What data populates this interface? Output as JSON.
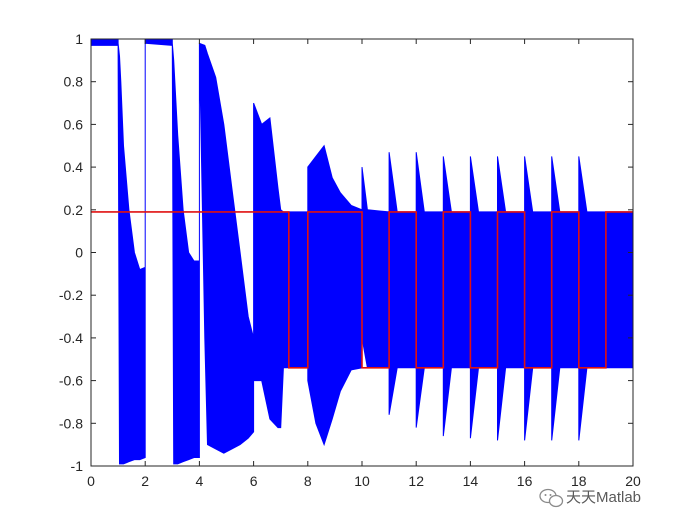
{
  "chart_data": {
    "type": "line",
    "title": "",
    "xlabel": "",
    "ylabel": "",
    "xlim": [
      0,
      20
    ],
    "ylim": [
      -1,
      1
    ],
    "x_ticks": [
      0,
      2,
      4,
      6,
      8,
      10,
      12,
      14,
      16,
      18,
      20
    ],
    "y_ticks": [
      -1,
      -0.8,
      -0.6,
      -0.4,
      -0.2,
      0,
      0.2,
      0.4,
      0.6,
      0.8,
      1
    ],
    "x_tick_labels": [
      "0",
      "2",
      "4",
      "6",
      "8",
      "10",
      "12",
      "14",
      "16",
      "18",
      "20"
    ],
    "y_tick_labels": [
      "-1",
      "-0.8",
      "-0.6",
      "-0.4",
      "-0.2",
      "0",
      "0.2",
      "0.4",
      "0.6",
      "0.8",
      "1"
    ],
    "grid": false,
    "legend": "none",
    "series": [
      {
        "color": "#e01010",
        "x": [
          0,
          7.3,
          7.3,
          8.0,
          8.0,
          10,
          10,
          11,
          11,
          12,
          12,
          13,
          13,
          14,
          14,
          15,
          15,
          16,
          16,
          17,
          17,
          18,
          18,
          19,
          19,
          20
        ],
        "y": [
          0.19,
          0.19,
          -0.54,
          -0.54,
          0.19,
          0.19,
          -0.54,
          -0.54,
          0.19,
          0.19,
          -0.54,
          -0.54,
          0.19,
          0.19,
          -0.54,
          -0.54,
          0.19,
          0.19,
          -0.54,
          -0.54,
          0.19,
          0.19,
          -0.54,
          -0.54,
          0.19,
          0.19
        ]
      },
      {
        "color": "#0000ff",
        "envelope_x": [
          0,
          1.0,
          1.0,
          1.05,
          1.1,
          1.2,
          1.4,
          1.6,
          1.8,
          2.0,
          2.0,
          3.0,
          3.0,
          3.05,
          3.2,
          3.4,
          3.6,
          3.8,
          4.0,
          4.0,
          4.2,
          4.3,
          4.6,
          4.9,
          5.2,
          5.5,
          5.8,
          6.0,
          6.0,
          6.3,
          6.6,
          6.9,
          7.0,
          7.1,
          7.4,
          7.5,
          8.0,
          8.0,
          8.3,
          8.6,
          8.9,
          9.2,
          9.6,
          10.0,
          10.0,
          10.2,
          11.0,
          11.0,
          11.3,
          12.0,
          12.0,
          12.3,
          13.0,
          13.0,
          13.3,
          14.0,
          14.0,
          14.3,
          15.0,
          15.0,
          15.3,
          16.0,
          16.0,
          16.3,
          17.0,
          17.0,
          17.3,
          18.0,
          18.0,
          18.3,
          19.0,
          19.0,
          20.0
        ],
        "envelope_upper": [
          1.0,
          1.0,
          0.98,
          0.92,
          0.8,
          0.5,
          0.2,
          0.0,
          -0.08,
          -0.07,
          1.0,
          1.0,
          0.98,
          0.9,
          0.55,
          0.2,
          0.0,
          -0.04,
          -0.04,
          0.98,
          0.97,
          0.93,
          0.82,
          0.6,
          0.3,
          0.0,
          -0.3,
          -0.4,
          0.7,
          0.6,
          0.63,
          0.3,
          0.2,
          0.19,
          0.19,
          0.19,
          0.19,
          0.4,
          0.45,
          0.5,
          0.35,
          0.28,
          0.22,
          0.2,
          0.4,
          0.2,
          0.19,
          0.47,
          0.19,
          0.19,
          0.47,
          0.19,
          0.19,
          0.45,
          0.19,
          0.19,
          0.45,
          0.19,
          0.19,
          0.45,
          0.19,
          0.19,
          0.45,
          0.19,
          0.19,
          0.45,
          0.19,
          0.19,
          0.45,
          0.19,
          0.19,
          0.19,
          0.19
        ],
        "envelope_lower": [
          0.97,
          0.97,
          0.95,
          -0.99,
          -0.99,
          -0.99,
          -0.98,
          -0.97,
          -0.97,
          -0.96,
          0.98,
          0.97,
          0.95,
          -0.99,
          -0.99,
          -0.98,
          -0.97,
          -0.96,
          -0.96,
          0.97,
          -0.4,
          -0.9,
          -0.92,
          -0.94,
          -0.92,
          -0.9,
          -0.87,
          -0.84,
          -0.6,
          -0.6,
          -0.78,
          -0.82,
          -0.82,
          -0.54,
          -0.54,
          -0.54,
          -0.54,
          -0.6,
          -0.8,
          -0.9,
          -0.78,
          -0.65,
          -0.55,
          -0.54,
          -0.4,
          -0.54,
          -0.54,
          -0.76,
          -0.54,
          -0.54,
          -0.82,
          -0.54,
          -0.54,
          -0.86,
          -0.54,
          -0.54,
          -0.87,
          -0.54,
          -0.54,
          -0.88,
          -0.54,
          -0.54,
          -0.88,
          -0.54,
          -0.54,
          -0.88,
          -0.54,
          -0.54,
          -0.88,
          -0.54,
          -0.54,
          -0.54,
          -0.54
        ]
      }
    ]
  },
  "watermark": {
    "text": "天天Matlab",
    "icon": "wechat-icon"
  }
}
